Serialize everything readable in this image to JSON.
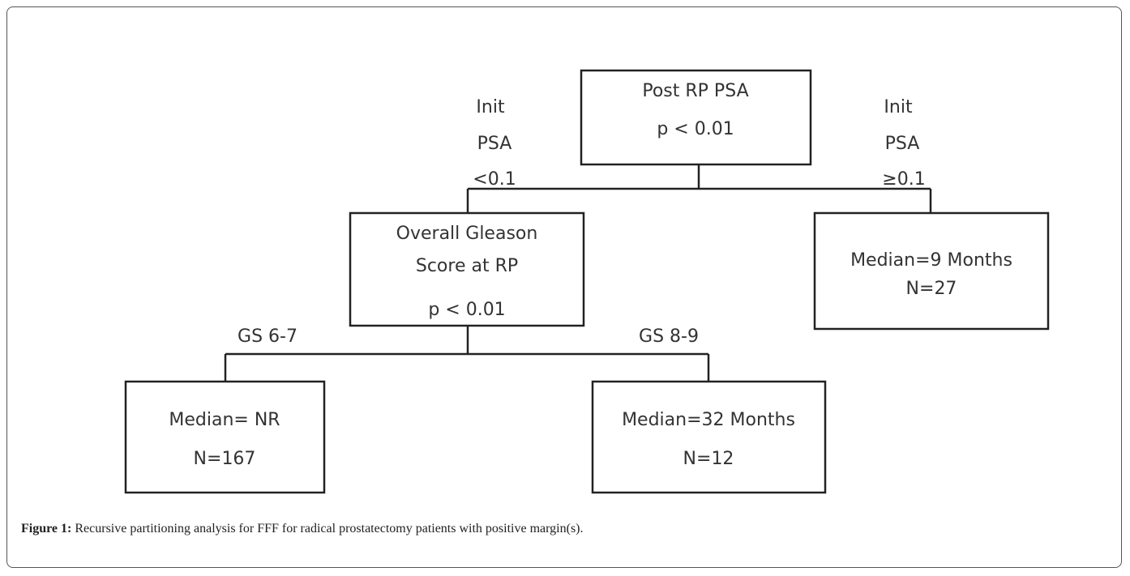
{
  "nodes": [
    {
      "lines": [
        "Post RP PSA",
        "p < 0.01"
      ]
    },
    {
      "lines": [
        "Overall Gleason",
        "Score at RP",
        "p < 0.01"
      ]
    },
    {
      "lines": [
        "Median=9 Months",
        "N=27"
      ]
    },
    {
      "lines": [
        "Median= NR",
        "N=167"
      ]
    },
    {
      "lines": [
        "Median=32 Months",
        "N=12"
      ]
    }
  ],
  "edges": [
    {
      "label": [
        "Init",
        "PSA",
        "<0.1"
      ]
    },
    {
      "label": [
        "Init",
        "PSA",
        "≥0.1"
      ]
    },
    {
      "label": [
        "GS 6-7"
      ]
    },
    {
      "label": [
        "GS 8-9"
      ]
    }
  ],
  "caption": {
    "label": "Figure 1:",
    "text": "Recursive partitioning analysis for FFF for radical prostatectomy patients with positive margin(s)."
  }
}
